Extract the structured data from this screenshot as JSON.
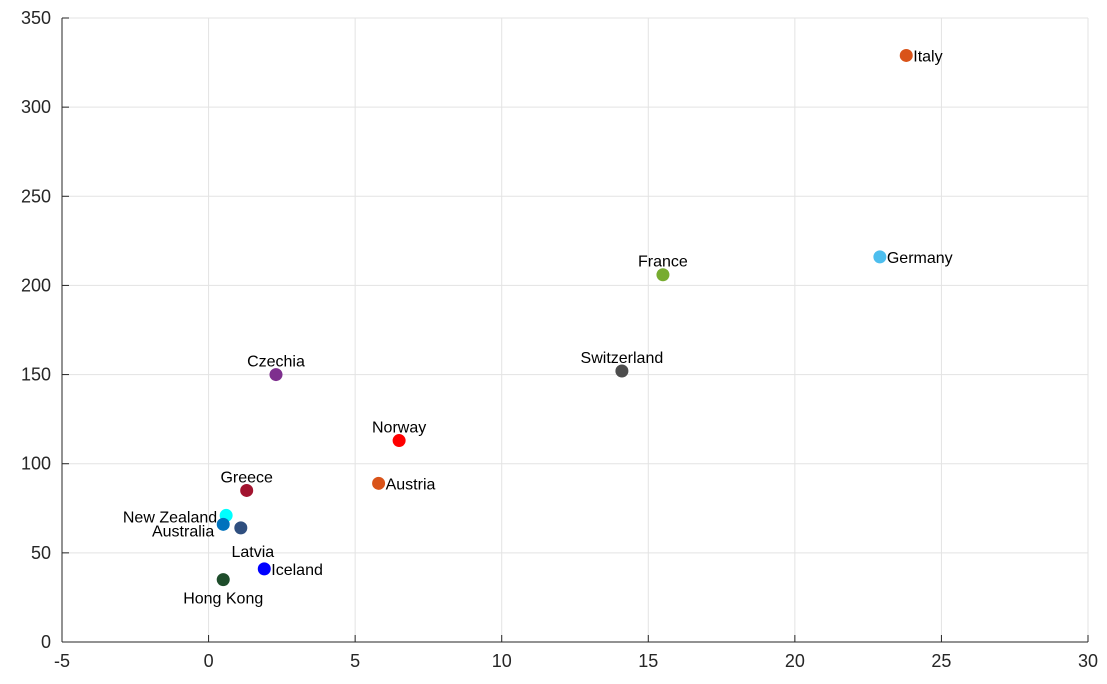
{
  "chart_data": {
    "type": "scatter",
    "title": "",
    "xlabel": "",
    "ylabel": "",
    "xlim": [
      -5,
      30
    ],
    "ylim": [
      0,
      350
    ],
    "xticks": [
      -5,
      0,
      5,
      10,
      15,
      20,
      25,
      30
    ],
    "yticks": [
      0,
      50,
      100,
      150,
      200,
      250,
      300,
      350
    ],
    "grid": true,
    "points": [
      {
        "label": "Italy",
        "x": 23.8,
        "y": 329,
        "color": "#d95319",
        "label_pos": "right"
      },
      {
        "label": "Germany",
        "x": 22.9,
        "y": 216,
        "color": "#4dbeee",
        "label_pos": "right"
      },
      {
        "label": "France",
        "x": 15.5,
        "y": 206,
        "color": "#77ac30",
        "label_pos": "above"
      },
      {
        "label": "Switzerland",
        "x": 14.1,
        "y": 152,
        "color": "#4d4d4d",
        "label_pos": "above"
      },
      {
        "label": "Czechia",
        "x": 2.3,
        "y": 150,
        "color": "#7e2f8e",
        "label_pos": "above"
      },
      {
        "label": "Norway",
        "x": 6.5,
        "y": 113,
        "color": "#ff0000",
        "label_pos": "above"
      },
      {
        "label": "Austria",
        "x": 5.8,
        "y": 89,
        "color": "#d95319",
        "label_pos": "right"
      },
      {
        "label": "Greece",
        "x": 1.3,
        "y": 85,
        "color": "#a2142f",
        "label_pos": "above"
      },
      {
        "label": "New Zealand",
        "x": 0.6,
        "y": 71,
        "color": "#00ffff",
        "label_pos": "left"
      },
      {
        "label": "Australia",
        "x": 0.5,
        "y": 66,
        "color": "#0072bd",
        "label_pos": "left"
      },
      {
        "label": "Latvia",
        "x": 1.1,
        "y": 64,
        "color": "#2f4f7f",
        "label_pos": "below"
      },
      {
        "label": "Iceland",
        "x": 1.9,
        "y": 41,
        "color": "#0000ff",
        "label_pos": "right"
      },
      {
        "label": "Hong Kong",
        "x": 0.5,
        "y": 35,
        "color": "#1e4d2b",
        "label_pos": "below"
      }
    ]
  }
}
